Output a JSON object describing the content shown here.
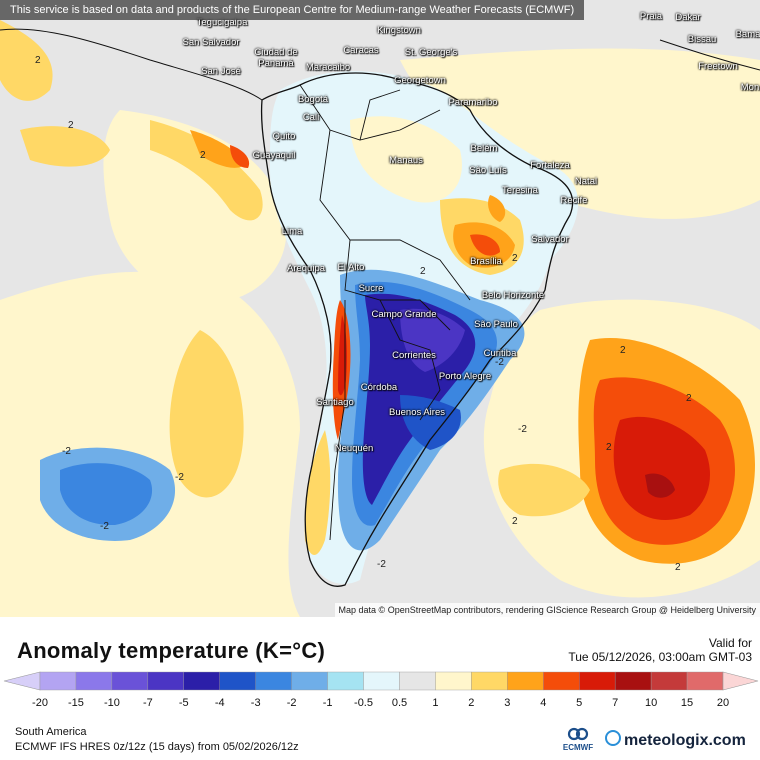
{
  "disclaimer": "This service is based on data and products of the European Centre for Medium-range Weather Forecasts (ECMWF)",
  "attribution": "Map data © OpenStreetMap contributors, rendering GIScience Research Group @ Heidelberg University",
  "legend": {
    "title": "Anomaly temperature (K=°C)",
    "valid_label": "Valid for",
    "valid_date": "Tue 05/12/2026, 03:00am GMT-03",
    "scale_ticks": [
      "-20",
      "-15",
      "-10",
      "-7",
      "-5",
      "-4",
      "-3",
      "-2",
      "-1",
      "-0.5",
      "0.5",
      "1",
      "2",
      "3",
      "4",
      "5",
      "7",
      "10",
      "15",
      "20"
    ],
    "scale_colors": [
      "#b3a4f2",
      "#8b78ea",
      "#6a52d8",
      "#4b35c4",
      "#2b1fa8",
      "#1f54c8",
      "#3b86e0",
      "#6faee8",
      "#a5e3f2",
      "#e4f6fb",
      "#e6e6e6",
      "#fff6cc",
      "#ffd866",
      "#ffa31a",
      "#f44d0a",
      "#d81b08",
      "#a81010",
      "#c43a3a",
      "#e06a6a",
      "#f4a6a6"
    ]
  },
  "footer": {
    "region": "South America",
    "model": "ECMWF IFS HRES 0z/12z (15 days) from 05/02/2026/12z",
    "ecmwf_logo": "ECMWF",
    "brand": "meteologix.com"
  },
  "cities": [
    {
      "name": "Tegucigalpa"
    },
    {
      "name": "San Salvador"
    },
    {
      "name": "San José"
    },
    {
      "name": "Ciudad de Panamá"
    },
    {
      "name": "Kingstown"
    },
    {
      "name": "Caracas"
    },
    {
      "name": "St. George's"
    },
    {
      "name": "Maracaibo"
    },
    {
      "name": "Georgetown"
    },
    {
      "name": "Paramaribo"
    },
    {
      "name": "Bogotá"
    },
    {
      "name": "Cali"
    },
    {
      "name": "Quito"
    },
    {
      "name": "Guayaquil"
    },
    {
      "name": "Manaus"
    },
    {
      "name": "Belém"
    },
    {
      "name": "São Luís"
    },
    {
      "name": "Fortaleza"
    },
    {
      "name": "Natal"
    },
    {
      "name": "Teresina"
    },
    {
      "name": "Recife"
    },
    {
      "name": "Salvador"
    },
    {
      "name": "Lima"
    },
    {
      "name": "Brasília"
    },
    {
      "name": "Arequipa"
    },
    {
      "name": "El Alto"
    },
    {
      "name": "Sucre"
    },
    {
      "name": "Belo Horizonte"
    },
    {
      "name": "Campo Grande"
    },
    {
      "name": "São Paulo"
    },
    {
      "name": "Curitiba"
    },
    {
      "name": "Corrientes"
    },
    {
      "name": "Porto Alegre"
    },
    {
      "name": "Córdoba"
    },
    {
      "name": "Santiago"
    },
    {
      "name": "Buenos Aires"
    },
    {
      "name": "Neuquén"
    },
    {
      "name": "Praia"
    },
    {
      "name": "Dakar"
    },
    {
      "name": "Bissau"
    },
    {
      "name": "Freetown"
    },
    {
      "name": "Bama"
    },
    {
      "name": "Mon"
    }
  ],
  "contours": [
    "2",
    "-2"
  ]
}
